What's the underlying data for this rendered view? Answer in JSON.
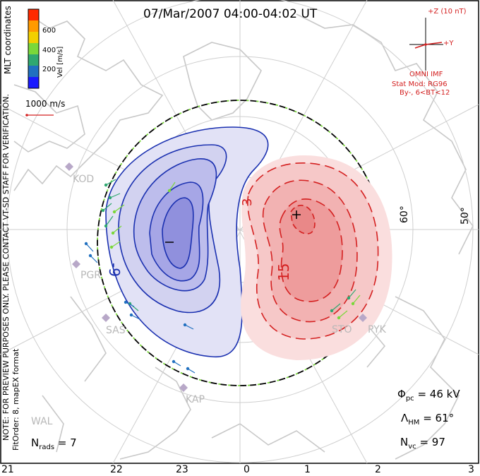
{
  "title": "07/Mar/2007 04:00-04:02 UT",
  "coordinate_label": "MLT coordinates",
  "colorbar": {
    "label": "Vel [m/s]",
    "tick_labels": [
      "600",
      "400",
      "200"
    ],
    "colors": [
      "#ff2a00",
      "#ff9a00",
      "#f2d000",
      "#7ad83a",
      "#2fa870",
      "#2070c0",
      "#1a1aff"
    ]
  },
  "vector_scale_label": "1000 m/s",
  "imf": {
    "z_label": "+Z (10 nT)",
    "y_label": "+Y",
    "source_label": "OMNI IMF",
    "model_label": "Stat Mod: RG96",
    "condition_label": "By-, 6<BT<12"
  },
  "disclaimer": "NOTE: FOR PREVIEW PURPOSES ONLY. PLEASE CONTACT VT-SD STAFF FOR VERIFICATION.",
  "fit_info": "FitOrder: 8, mapEX format",
  "latitude_labels": [
    "60°",
    "50°"
  ],
  "radars": [
    "KOD",
    "PGR",
    "SAS",
    "KAP",
    "STO",
    "PYK",
    "WAL"
  ],
  "contour_labels": {
    "negative": "-9",
    "positive": "15",
    "positive_inner": "3"
  },
  "stats": {
    "potential_symbol": "Φ",
    "potential_sub": "pc",
    "potential_value": "= 46 kV",
    "hm_symbol": "Λ",
    "hm_sub": "HM",
    "hm_value": "= 61°",
    "nvc_symbol": "N",
    "nvc_sub": "vc",
    "nvc_value": "= 97",
    "nrads_symbol": "N",
    "nrads_sub": "rads",
    "nrads_value": "= 7"
  },
  "mlt_axis_labels": [
    "21",
    "22",
    "23",
    "0",
    "1",
    "2",
    "3"
  ],
  "colors": {
    "negative_fill": "#c8c8f0",
    "negative_line": "#1a30b0",
    "positive_fill": "#f6c8c8",
    "positive_line": "#d42020",
    "coastline": "#c8c8c8",
    "grid": "#cfcfcf",
    "boundary_green": "#7ad83a"
  }
}
